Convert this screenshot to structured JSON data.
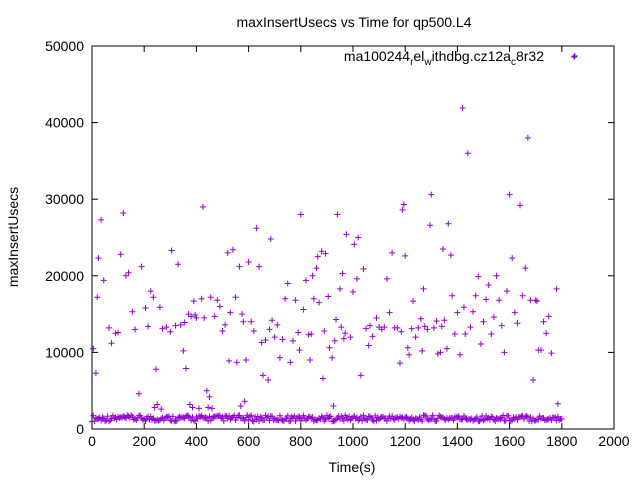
{
  "chart_data": {
    "type": "scatter",
    "title": "maxInsertUsecs vs Time for qp500.L4",
    "xlabel": "Time(s)",
    "ylabel": "maxInsertUsecs",
    "xlim": [
      0,
      2000
    ],
    "ylim": [
      0,
      50000
    ],
    "xticks": [
      0,
      200,
      400,
      600,
      800,
      1000,
      1200,
      1400,
      1600,
      1800,
      2000
    ],
    "yticks": [
      0,
      10000,
      20000,
      30000,
      40000,
      50000
    ],
    "grid": false,
    "legend_position": "top-right",
    "marker": "+",
    "series": [
      {
        "name": "ma100244_rel_withdbg.cz12a_c8r32",
        "legend_parts": {
          "base1": "ma100244",
          "sub1": "r",
          "base2": "el",
          "sub2": "w",
          "base3": "ithdbg.cz12a",
          "sub3": "c",
          "base4": "8r32"
        },
        "color": "#9400d3",
        "baseline": {
          "x_start": 0,
          "x_end": 1800,
          "x_step": 5,
          "y_low": 1000,
          "y_high": 1800
        },
        "points": [
          [
            5,
            10500
          ],
          [
            15,
            7300
          ],
          [
            20,
            17200
          ],
          [
            25,
            22300
          ],
          [
            35,
            27300
          ],
          [
            45,
            19400
          ],
          [
            65,
            13200
          ],
          [
            75,
            11200
          ],
          [
            90,
            12500
          ],
          [
            100,
            12600
          ],
          [
            110,
            22800
          ],
          [
            120,
            28200
          ],
          [
            130,
            20000
          ],
          [
            140,
            20400
          ],
          [
            155,
            15300
          ],
          [
            165,
            13000
          ],
          [
            180,
            4600
          ],
          [
            190,
            21200
          ],
          [
            205,
            15800
          ],
          [
            215,
            13400
          ],
          [
            225,
            18000
          ],
          [
            235,
            17200
          ],
          [
            240,
            2800
          ],
          [
            245,
            7800
          ],
          [
            250,
            3200
          ],
          [
            260,
            15900
          ],
          [
            265,
            2600
          ],
          [
            270,
            13100
          ],
          [
            285,
            13300
          ],
          [
            300,
            12700
          ],
          [
            305,
            23300
          ],
          [
            320,
            13500
          ],
          [
            330,
            21500
          ],
          [
            340,
            13600
          ],
          [
            350,
            10200
          ],
          [
            355,
            13900
          ],
          [
            360,
            7900
          ],
          [
            370,
            15000
          ],
          [
            375,
            3200
          ],
          [
            380,
            14700
          ],
          [
            385,
            2800
          ],
          [
            390,
            16700
          ],
          [
            395,
            14900
          ],
          [
            400,
            14500
          ],
          [
            410,
            2700
          ],
          [
            420,
            17000
          ],
          [
            425,
            29000
          ],
          [
            430,
            14500
          ],
          [
            440,
            5000
          ],
          [
            445,
            2800
          ],
          [
            450,
            4200
          ],
          [
            455,
            17200
          ],
          [
            460,
            2700
          ],
          [
            470,
            14700
          ],
          [
            480,
            16800
          ],
          [
            490,
            16000
          ],
          [
            500,
            12800
          ],
          [
            510,
            13600
          ],
          [
            520,
            23000
          ],
          [
            525,
            8900
          ],
          [
            530,
            15200
          ],
          [
            540,
            23400
          ],
          [
            550,
            17200
          ],
          [
            555,
            8700
          ],
          [
            565,
            21200
          ],
          [
            570,
            3000
          ],
          [
            575,
            15000
          ],
          [
            580,
            14000
          ],
          [
            585,
            3600
          ],
          [
            590,
            9000
          ],
          [
            600,
            21800
          ],
          [
            610,
            14000
          ],
          [
            620,
            12800
          ],
          [
            630,
            26200
          ],
          [
            640,
            21200
          ],
          [
            650,
            11300
          ],
          [
            655,
            7000
          ],
          [
            665,
            11600
          ],
          [
            675,
            6400
          ],
          [
            680,
            13000
          ],
          [
            685,
            24800
          ],
          [
            690,
            14200
          ],
          [
            700,
            12000
          ],
          [
            710,
            13600
          ],
          [
            720,
            9300
          ],
          [
            730,
            11700
          ],
          [
            740,
            17000
          ],
          [
            750,
            19000
          ],
          [
            760,
            8700
          ],
          [
            770,
            11500
          ],
          [
            780,
            16800
          ],
          [
            790,
            12600
          ],
          [
            795,
            10300
          ],
          [
            800,
            28000
          ],
          [
            810,
            15600
          ],
          [
            820,
            19400
          ],
          [
            830,
            12300
          ],
          [
            835,
            9000
          ],
          [
            840,
            12400
          ],
          [
            845,
            20000
          ],
          [
            850,
            17000
          ],
          [
            860,
            21000
          ],
          [
            865,
            22500
          ],
          [
            870,
            16500
          ],
          [
            880,
            23200
          ],
          [
            885,
            6600
          ],
          [
            890,
            12800
          ],
          [
            895,
            22900
          ],
          [
            905,
            17300
          ],
          [
            910,
            10600
          ],
          [
            920,
            9300
          ],
          [
            925,
            3000
          ],
          [
            930,
            11500
          ],
          [
            935,
            14300
          ],
          [
            940,
            28000
          ],
          [
            950,
            18300
          ],
          [
            955,
            13300
          ],
          [
            960,
            20300
          ],
          [
            965,
            11800
          ],
          [
            970,
            12500
          ],
          [
            975,
            25400
          ],
          [
            990,
            12000
          ],
          [
            1000,
            17900
          ],
          [
            1005,
            24100
          ],
          [
            1015,
            19600
          ],
          [
            1020,
            25000
          ],
          [
            1030,
            7000
          ],
          [
            1040,
            20900
          ],
          [
            1050,
            13100
          ],
          [
            1060,
            10900
          ],
          [
            1065,
            13500
          ],
          [
            1075,
            12100
          ],
          [
            1090,
            14500
          ],
          [
            1100,
            13300
          ],
          [
            1110,
            13000
          ],
          [
            1120,
            13300
          ],
          [
            1130,
            19600
          ],
          [
            1140,
            15200
          ],
          [
            1150,
            23000
          ],
          [
            1160,
            13200
          ],
          [
            1170,
            13200
          ],
          [
            1180,
            8600
          ],
          [
            1185,
            12700
          ],
          [
            1190,
            28600
          ],
          [
            1195,
            29300
          ],
          [
            1200,
            22600
          ],
          [
            1210,
            10600
          ],
          [
            1215,
            9700
          ],
          [
            1225,
            13100
          ],
          [
            1230,
            16700
          ],
          [
            1240,
            12000
          ],
          [
            1250,
            13200
          ],
          [
            1260,
            14400
          ],
          [
            1265,
            10200
          ],
          [
            1270,
            18300
          ],
          [
            1275,
            13400
          ],
          [
            1285,
            13000
          ],
          [
            1295,
            26600
          ],
          [
            1300,
            30600
          ],
          [
            1310,
            13200
          ],
          [
            1320,
            14100
          ],
          [
            1325,
            9800
          ],
          [
            1335,
            10000
          ],
          [
            1340,
            13400
          ],
          [
            1345,
            23500
          ],
          [
            1350,
            14200
          ],
          [
            1360,
            10500
          ],
          [
            1365,
            26800
          ],
          [
            1375,
            22700
          ],
          [
            1380,
            17400
          ],
          [
            1390,
            12400
          ],
          [
            1400,
            15200
          ],
          [
            1410,
            9700
          ],
          [
            1420,
            41900
          ],
          [
            1425,
            15900
          ],
          [
            1430,
            12400
          ],
          [
            1440,
            36000
          ],
          [
            1450,
            13300
          ],
          [
            1460,
            15300
          ],
          [
            1470,
            17400
          ],
          [
            1480,
            19900
          ],
          [
            1490,
            11100
          ],
          [
            1500,
            14000
          ],
          [
            1510,
            16900
          ],
          [
            1520,
            18800
          ],
          [
            1530,
            12400
          ],
          [
            1540,
            14600
          ],
          [
            1550,
            20000
          ],
          [
            1560,
            16800
          ],
          [
            1570,
            13500
          ],
          [
            1580,
            10000
          ],
          [
            1590,
            18000
          ],
          [
            1600,
            30600
          ],
          [
            1610,
            22300
          ],
          [
            1620,
            15200
          ],
          [
            1630,
            13800
          ],
          [
            1640,
            29200
          ],
          [
            1650,
            17400
          ],
          [
            1660,
            21000
          ],
          [
            1670,
            38000
          ],
          [
            1680,
            16800
          ],
          [
            1690,
            6400
          ],
          [
            1700,
            16800
          ],
          [
            1705,
            16700
          ],
          [
            1710,
            10300
          ],
          [
            1720,
            10300
          ],
          [
            1730,
            14000
          ],
          [
            1740,
            12500
          ],
          [
            1750,
            14700
          ],
          [
            1760,
            9900
          ],
          [
            1780,
            18300
          ],
          [
            1785,
            3300
          ],
          [
            1850,
            48700
          ]
        ]
      }
    ]
  }
}
